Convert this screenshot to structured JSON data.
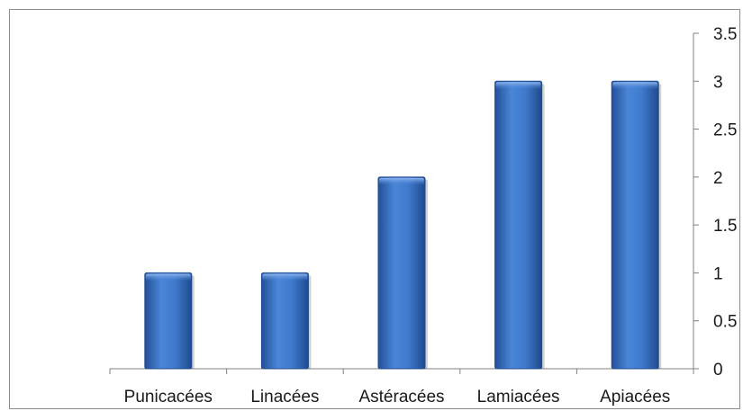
{
  "chart_data": {
    "type": "bar",
    "categories": [
      "Punicacées",
      "Linacées",
      "Astéracées",
      "Lamiacées",
      "Apiacées"
    ],
    "values": [
      1,
      1,
      2,
      3,
      3
    ],
    "title": "",
    "xlabel": "",
    "ylabel": "",
    "ylim": [
      0,
      3.5
    ],
    "yticks": [
      "0",
      "0.5",
      "1",
      "1.5",
      "2",
      "2.5",
      "3",
      "3.5"
    ],
    "yaxis_side": "right",
    "grid": false,
    "legend": "none",
    "bar_color": "#3a6fc4"
  }
}
